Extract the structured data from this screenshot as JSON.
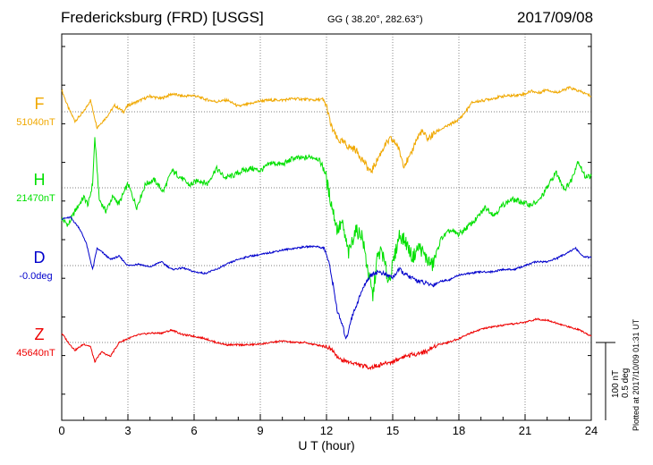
{
  "header": {
    "title": "Fredericksburg (FRD)  [USGS]",
    "coords": "GG ( 38.20°, 282.63°)",
    "date": "2017/09/08"
  },
  "plotted": "Plotted at 2017/10/09 01:31  UT",
  "scale_bar": {
    "nt": "100 nT",
    "deg": "0.5 deg"
  },
  "colors": {
    "F": "#f0a800",
    "H": "#00e000",
    "D": "#0000cc",
    "Z": "#ee0000"
  },
  "chart_data": {
    "type": "line",
    "xlabel": "U T (hour)",
    "xlim": [
      0,
      24
    ],
    "xticks": [
      "0",
      "3",
      "6",
      "9",
      "12",
      "15",
      "18",
      "21",
      "24"
    ],
    "grid": true,
    "series": [
      {
        "name": "F",
        "baseline_label": "51040nT",
        "x": [
          0,
          0.3,
          0.6,
          1,
          1.3,
          1.6,
          2,
          2.4,
          2.8,
          3,
          3.5,
          4,
          4.5,
          5,
          5.5,
          6,
          6.5,
          7,
          7.5,
          8,
          8.5,
          9,
          9.5,
          10,
          10.5,
          11,
          11.5,
          11.8,
          12,
          12.2,
          12.5,
          12.8,
          13,
          13.3,
          13.6,
          14,
          14.3,
          14.6,
          14.9,
          15.2,
          15.5,
          15.8,
          16,
          16.3,
          16.6,
          17,
          17.5,
          18,
          18.3,
          18.6,
          19,
          19.5,
          20,
          20.5,
          21,
          21.3,
          21.6,
          22,
          22.3,
          22.6,
          23,
          23.3,
          23.6,
          24
        ],
        "values": [
          28,
          5,
          -12,
          0,
          15,
          -20,
          -8,
          8,
          0,
          8,
          14,
          20,
          17,
          23,
          20,
          21,
          16,
          13,
          15,
          7,
          10,
          14,
          15,
          15,
          17,
          16,
          15,
          16,
          8,
          -18,
          -36,
          -40,
          -45,
          -48,
          -60,
          -78,
          -62,
          -45,
          -35,
          -42,
          -68,
          -58,
          -40,
          -25,
          -35,
          -25,
          -18,
          -10,
          0,
          12,
          14,
          17,
          20,
          21,
          23,
          27,
          24,
          29,
          25,
          26,
          31,
          28,
          25,
          20
        ]
      },
      {
        "name": "H",
        "baseline_label": "21470nT",
        "x": [
          0,
          0.3,
          0.6,
          1,
          1.2,
          1.4,
          1.5,
          1.7,
          2,
          2.3,
          2.6,
          3,
          3.4,
          3.8,
          4.2,
          4.6,
          5,
          5.4,
          5.8,
          6.2,
          6.6,
          7,
          7.4,
          7.8,
          8.2,
          8.6,
          9,
          9.5,
          10,
          10.5,
          11,
          11.3,
          11.6,
          11.9,
          12.1,
          12.3,
          12.5,
          12.7,
          13,
          13.3,
          13.6,
          13.9,
          14.1,
          14.3,
          14.5,
          14.8,
          15,
          15.3,
          15.6,
          15.9,
          16.2,
          16.5,
          16.8,
          17.2,
          17.6,
          18,
          18.4,
          18.8,
          19.2,
          19.6,
          20,
          20.4,
          20.8,
          21.2,
          21.6,
          22,
          22.4,
          22.8,
          23.1,
          23.4,
          23.7,
          24
        ],
        "values": [
          -40,
          -48,
          -30,
          -12,
          -22,
          5,
          65,
          -15,
          -30,
          -12,
          -20,
          5,
          -25,
          5,
          10,
          -5,
          22,
          13,
          3,
          10,
          5,
          25,
          13,
          16,
          22,
          25,
          22,
          32,
          30,
          38,
          38,
          40,
          38,
          25,
          -5,
          -30,
          -55,
          -45,
          -85,
          -55,
          -60,
          -110,
          -140,
          -90,
          -80,
          -120,
          -100,
          -60,
          -70,
          -90,
          -75,
          -90,
          -100,
          -65,
          -55,
          -60,
          -50,
          -40,
          -25,
          -35,
          -22,
          -15,
          -18,
          -22,
          -18,
          0,
          20,
          -2,
          10,
          35,
          15,
          15
        ]
      },
      {
        "name": "D",
        "baseline_label": "-0.0deg",
        "x": [
          0,
          0.4,
          0.8,
          1.1,
          1.4,
          1.6,
          1.8,
          2.2,
          2.6,
          3,
          3.5,
          4,
          4.5,
          5,
          5.5,
          6,
          6.5,
          7,
          7.5,
          8,
          8.5,
          9,
          9.5,
          10,
          10.5,
          11,
          11.5,
          11.9,
          12.1,
          12.3,
          12.5,
          12.7,
          12.9,
          13.1,
          13.3,
          13.5,
          13.8,
          14.1,
          14.4,
          14.7,
          15,
          15.3,
          15.6,
          16,
          16.4,
          16.8,
          17.2,
          17.6,
          18,
          18.5,
          19,
          19.5,
          20,
          20.5,
          21,
          21.5,
          22,
          22.5,
          23,
          23.3,
          23.6,
          24
        ],
        "values": [
          60,
          62,
          48,
          30,
          -5,
          22,
          18,
          8,
          12,
          0,
          2,
          -2,
          5,
          -5,
          -3,
          -8,
          -10,
          -5,
          2,
          8,
          12,
          14,
          17,
          20,
          22,
          24,
          25,
          22,
          5,
          -25,
          -60,
          -75,
          -95,
          -70,
          -55,
          -40,
          -20,
          -10,
          -8,
          -12,
          -15,
          -5,
          -12,
          -18,
          -22,
          -25,
          -20,
          -18,
          -12,
          -10,
          -8,
          -8,
          -5,
          -5,
          0,
          5,
          5,
          10,
          18,
          22,
          12,
          10
        ]
      },
      {
        "name": "Z",
        "baseline_label": "45640nT",
        "x": [
          0,
          0.3,
          0.6,
          1,
          1.3,
          1.5,
          1.8,
          2.2,
          2.6,
          3,
          3.5,
          4,
          4.5,
          5,
          5.5,
          6,
          6.5,
          7,
          7.5,
          8,
          8.5,
          9,
          9.5,
          10,
          10.5,
          11,
          11.5,
          12,
          12.3,
          12.6,
          13,
          13.3,
          13.6,
          14,
          14.3,
          14.6,
          15,
          15.5,
          16,
          16.5,
          17,
          17.5,
          18,
          18.5,
          19,
          19.5,
          20,
          20.5,
          21,
          21.5,
          22,
          22.5,
          23,
          23.5,
          24
        ],
        "values": [
          12,
          0,
          -10,
          -2,
          -5,
          -25,
          -12,
          -18,
          0,
          5,
          10,
          12,
          12,
          16,
          10,
          8,
          5,
          0,
          -3,
          -3,
          -3,
          -2,
          0,
          2,
          0,
          0,
          -3,
          -5,
          -10,
          -22,
          -25,
          -27,
          -30,
          -32,
          -30,
          -27,
          -25,
          -18,
          -15,
          -12,
          -3,
          0,
          5,
          12,
          17,
          20,
          22,
          24,
          26,
          30,
          29,
          24,
          20,
          16,
          8
        ]
      }
    ]
  }
}
